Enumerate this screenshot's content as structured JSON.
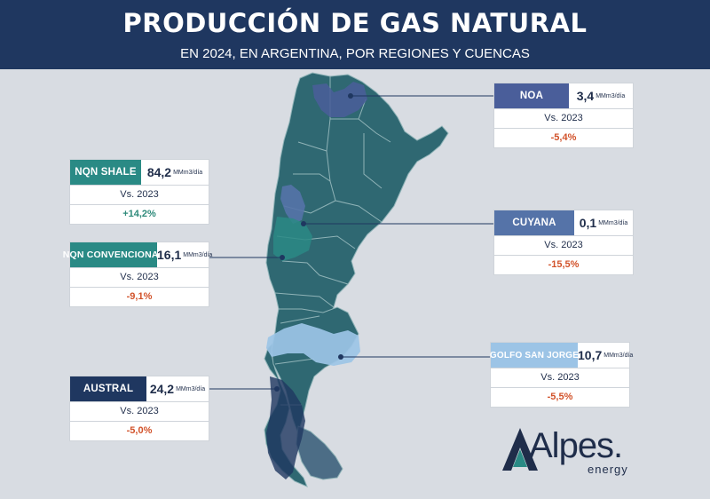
{
  "header": {
    "title": "PRODUCCIÓN DE GAS NATURAL",
    "subtitle": "EN 2024, EN ARGENTINA, POR REGIONES Y CUENCAS"
  },
  "colors": {
    "header_bg": "#1f3760",
    "province_fill": "#2f6872",
    "noa": "#4a5e9a",
    "nqn_shale": "#2a8a85",
    "nqn_convencional": "#2a8a85",
    "cuyana": "#5573a8",
    "golfo_san_jorge": "#9cc4e6",
    "austral": "#1f3760",
    "negative": "#d2522a",
    "positive": "#2e8a7a"
  },
  "basins": [
    {
      "id": "noa",
      "label": "NOA",
      "value": "3,4",
      "unit": "MMm3/día",
      "compare": "Vs. 2023",
      "change": "-5,4%",
      "trend": "negative",
      "color": "#4a5e9a"
    },
    {
      "id": "nqn-shale",
      "label": "NQN SHALE",
      "value": "84,2",
      "unit": "MMm3/día",
      "compare": "Vs. 2023",
      "change": "+14,2%",
      "trend": "positive",
      "color": "#2a8a85"
    },
    {
      "id": "cuyana",
      "label": "CUYANA",
      "value": "0,1",
      "unit": "MMm3/día",
      "compare": "Vs. 2023",
      "change": "-15,5%",
      "trend": "negative",
      "color": "#5573a8"
    },
    {
      "id": "nqn-convencional",
      "label": "NQN CONVENCIONAL",
      "value": "16,1",
      "unit": "MMm3/día",
      "compare": "Vs. 2023",
      "change": "-9,1%",
      "trend": "negative",
      "color": "#2a8a85"
    },
    {
      "id": "golfo-san-jorge",
      "label": "GOLFO SAN JORGE",
      "value": "10,7",
      "unit": "MMm3/día",
      "compare": "Vs. 2023",
      "change": "-5,5%",
      "trend": "negative",
      "color": "#9cc4e6"
    },
    {
      "id": "austral",
      "label": "AUSTRAL",
      "value": "24,2",
      "unit": "MMm3/día",
      "compare": "Vs. 2023",
      "change": "-5,0%",
      "trend": "negative",
      "color": "#1f3760"
    }
  ],
  "logo": {
    "name": "Alpes.",
    "sub": "energy"
  }
}
